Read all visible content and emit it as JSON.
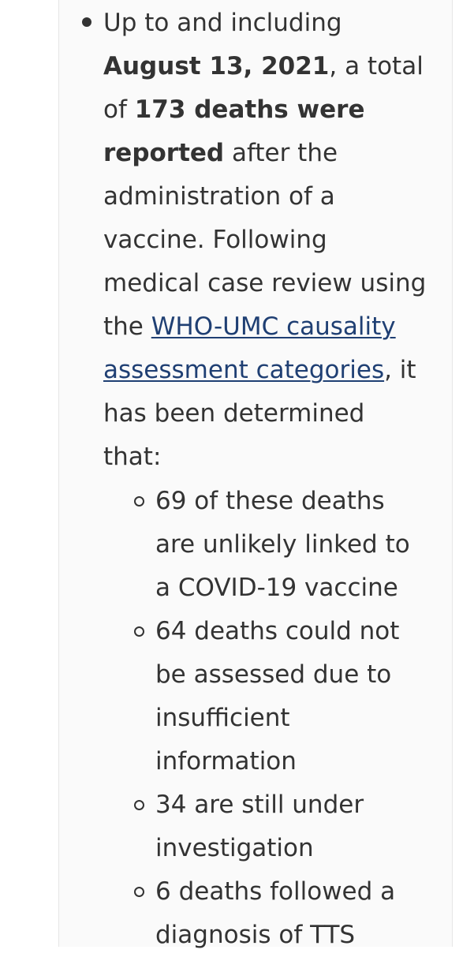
{
  "main_bullet": {
    "lines": [
      [
        "Up to and including"
      ],
      [
        "August 13, 2021",
        ", a total"
      ],
      [
        "of ",
        "173 deaths were"
      ],
      [
        "reported",
        " after the"
      ],
      [
        "administration of a"
      ],
      [
        "vaccine. Following"
      ],
      [
        "medical case review using"
      ],
      [
        "the ",
        "WHO-UMC causality"
      ],
      [
        "assessment categories",
        ", it"
      ],
      [
        "has been determined"
      ],
      [
        "that:"
      ]
    ]
  },
  "sub_items": [
    {
      "lines": [
        "69 of these deaths",
        "are unlikely linked to",
        "a COVID-19 vaccine"
      ]
    },
    {
      "lines": [
        "64 deaths could not",
        "be assessed due to",
        "insufficient",
        "information"
      ]
    },
    {
      "lines": [
        "34 are still under",
        "investigation"
      ]
    },
    {
      "lines": [
        "6 deaths followed a",
        "diagnosis of TTS"
      ]
    }
  ]
}
